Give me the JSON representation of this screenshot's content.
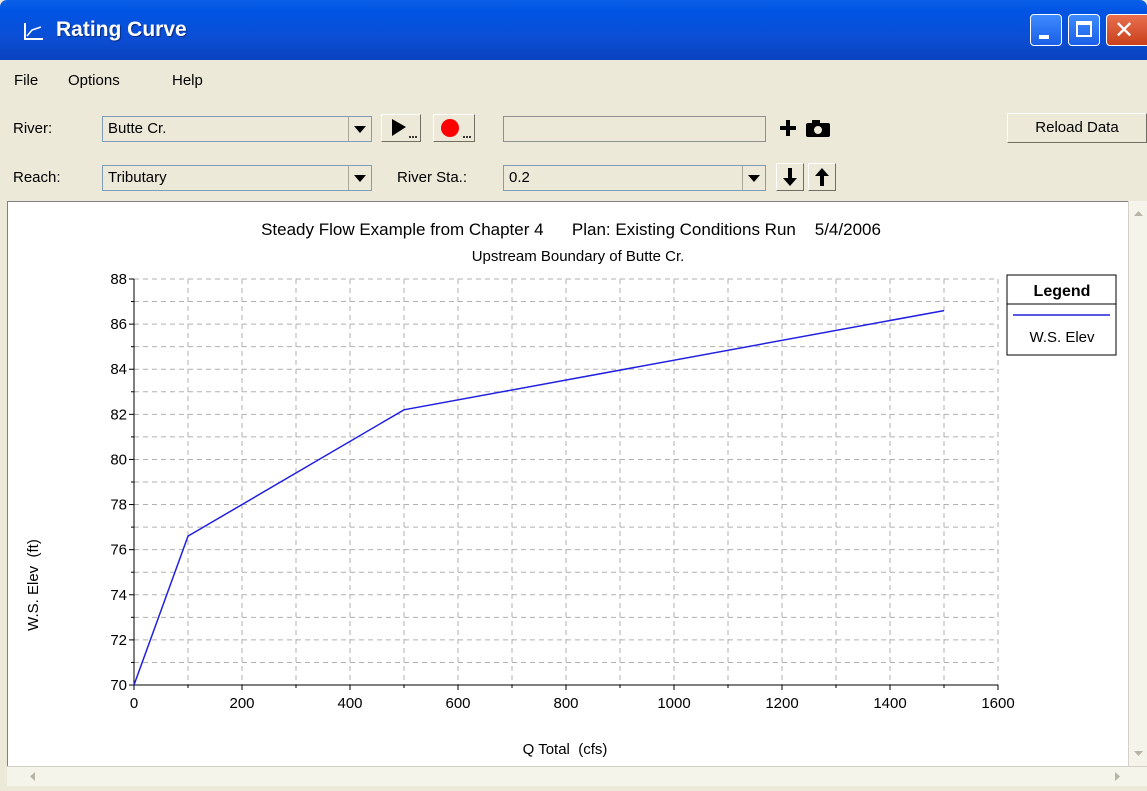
{
  "window": {
    "title": "Rating Curve"
  },
  "menu": {
    "file": "File",
    "options": "Options",
    "help": "Help"
  },
  "toolbar": {
    "river_label": "River:",
    "river_value": "Butte Cr.",
    "reach_label": "Reach:",
    "reach_value": "Tributary",
    "river_sta_label": "River Sta.:",
    "river_sta_value": "0.2",
    "reload_label": "Reload Data"
  },
  "chart_data": {
    "type": "line",
    "title": "Steady Flow Example from Chapter 4      Plan: Existing Conditions Run    5/4/2006",
    "subtitle": "Upstream Boundary of Butte Cr.",
    "xlabel": "Q Total  (cfs)",
    "ylabel": "W.S. Elev  (ft)",
    "xlim": [
      0,
      1600
    ],
    "ylim": [
      70,
      88
    ],
    "xticks": [
      0,
      200,
      400,
      600,
      800,
      1000,
      1200,
      1400,
      1600
    ],
    "yticks": [
      70,
      72,
      74,
      76,
      78,
      80,
      82,
      84,
      86,
      88
    ],
    "grid": true,
    "legend": {
      "title": "Legend",
      "placement": "right"
    },
    "series": [
      {
        "name": "W.S. Elev",
        "color": "#2020e0",
        "x": [
          0,
          100,
          500,
          1500
        ],
        "y": [
          70.0,
          76.6,
          82.2,
          86.6
        ]
      }
    ]
  }
}
